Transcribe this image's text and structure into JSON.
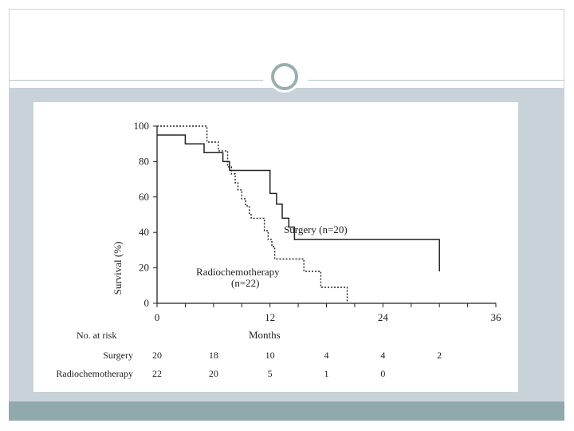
{
  "theme": {
    "band_color": "#c8d3d9",
    "footer_color": "#8fa9ad",
    "ring_color": "#97afb2",
    "line_color": "#222222"
  },
  "chart_data": {
    "type": "line",
    "title": "",
    "xlabel": "Months",
    "ylabel": "Survival (%)",
    "xlim": [
      0,
      36
    ],
    "ylim": [
      0,
      100
    ],
    "xticks": [
      0,
      12,
      24,
      36
    ],
    "yticks": [
      0,
      20,
      40,
      60,
      80,
      100
    ],
    "grid": false,
    "series": [
      {
        "name": "Surgery",
        "label": "Surgery (n=20)",
        "style": "solid",
        "steps": [
          [
            0,
            95
          ],
          [
            3,
            95
          ],
          [
            3,
            90
          ],
          [
            5,
            90
          ],
          [
            5,
            85
          ],
          [
            7,
            85
          ],
          [
            7,
            80
          ],
          [
            7.7,
            80
          ],
          [
            7.7,
            75
          ],
          [
            12,
            75
          ],
          [
            12,
            62
          ],
          [
            12.7,
            62
          ],
          [
            12.7,
            56
          ],
          [
            13.3,
            56
          ],
          [
            13.3,
            48
          ],
          [
            14,
            48
          ],
          [
            14,
            43
          ],
          [
            14.6,
            43
          ],
          [
            14.6,
            36
          ],
          [
            30,
            36
          ],
          [
            30,
            18
          ]
        ]
      },
      {
        "name": "Radiochemotherapy",
        "label_lines": [
          "Radiochemotherapy",
          "(n=22)"
        ],
        "style": "dotted",
        "steps": [
          [
            0,
            100
          ],
          [
            5.3,
            100
          ],
          [
            5.3,
            91
          ],
          [
            6.5,
            91
          ],
          [
            6.5,
            86
          ],
          [
            7.5,
            86
          ],
          [
            7.5,
            77
          ],
          [
            7.9,
            77
          ],
          [
            7.9,
            73
          ],
          [
            8.3,
            73
          ],
          [
            8.3,
            68
          ],
          [
            8.6,
            68
          ],
          [
            8.6,
            64
          ],
          [
            9,
            64
          ],
          [
            9,
            59
          ],
          [
            9.4,
            59
          ],
          [
            9.4,
            55
          ],
          [
            9.8,
            55
          ],
          [
            9.8,
            50
          ],
          [
            10,
            50
          ],
          [
            10,
            48
          ],
          [
            11.4,
            48
          ],
          [
            11.4,
            41
          ],
          [
            11.8,
            41
          ],
          [
            11.8,
            36
          ],
          [
            12.2,
            36
          ],
          [
            12.2,
            32
          ],
          [
            12.5,
            32
          ],
          [
            12.5,
            25
          ],
          [
            15.6,
            25
          ],
          [
            15.6,
            18
          ],
          [
            17.4,
            18
          ],
          [
            17.4,
            9
          ],
          [
            20.2,
            9
          ],
          [
            20.2,
            0
          ]
        ]
      }
    ],
    "at_risk": {
      "heading": "No. at risk",
      "times": [
        0,
        6,
        12,
        18,
        24,
        30
      ],
      "rows": [
        {
          "label": "Surgery",
          "values": [
            "20",
            "18",
            "10",
            "4",
            "4",
            "2"
          ]
        },
        {
          "label": "Radiochemotherapy",
          "values": [
            "22",
            "20",
            "5",
            "1",
            "0",
            ""
          ]
        }
      ]
    }
  }
}
